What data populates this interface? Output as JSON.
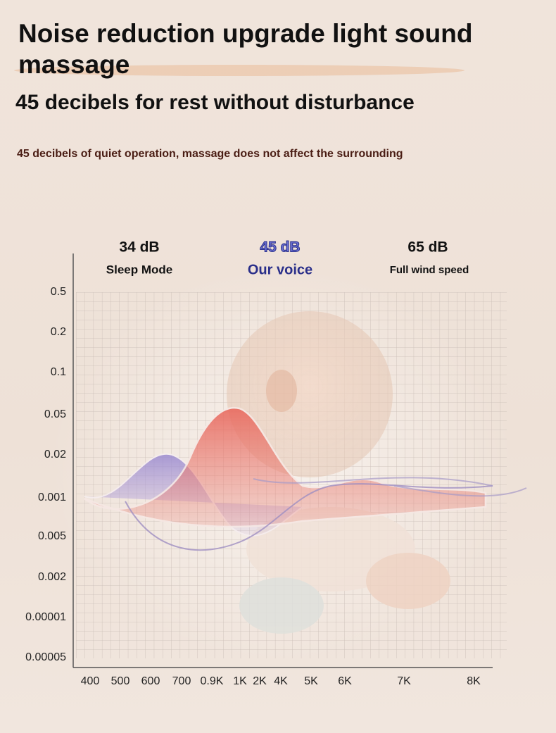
{
  "header": {
    "title": "Noise reduction upgrade light sound massage",
    "subtitle": "45 decibels for rest without disturbance",
    "description": "45 decibels of quiet operation, massage does not affect the surrounding"
  },
  "modes": [
    {
      "level": "34 dB",
      "label": "Sleep Mode"
    },
    {
      "level": "45 dB",
      "label": "Our voice"
    },
    {
      "level": "65 dB",
      "label": "Full wind speed"
    }
  ],
  "chart": {
    "y_labels": [
      "0.5",
      "0.2",
      "0.1",
      "0.05",
      "0.02",
      "0.001",
      "0.005",
      "0.002",
      "0.00001",
      "0.00005"
    ],
    "x_labels": [
      "400",
      "500",
      "600",
      "700",
      "0.9K",
      "1K",
      "2K",
      "4K",
      "5K",
      "6K",
      "7K",
      "8K"
    ]
  }
}
